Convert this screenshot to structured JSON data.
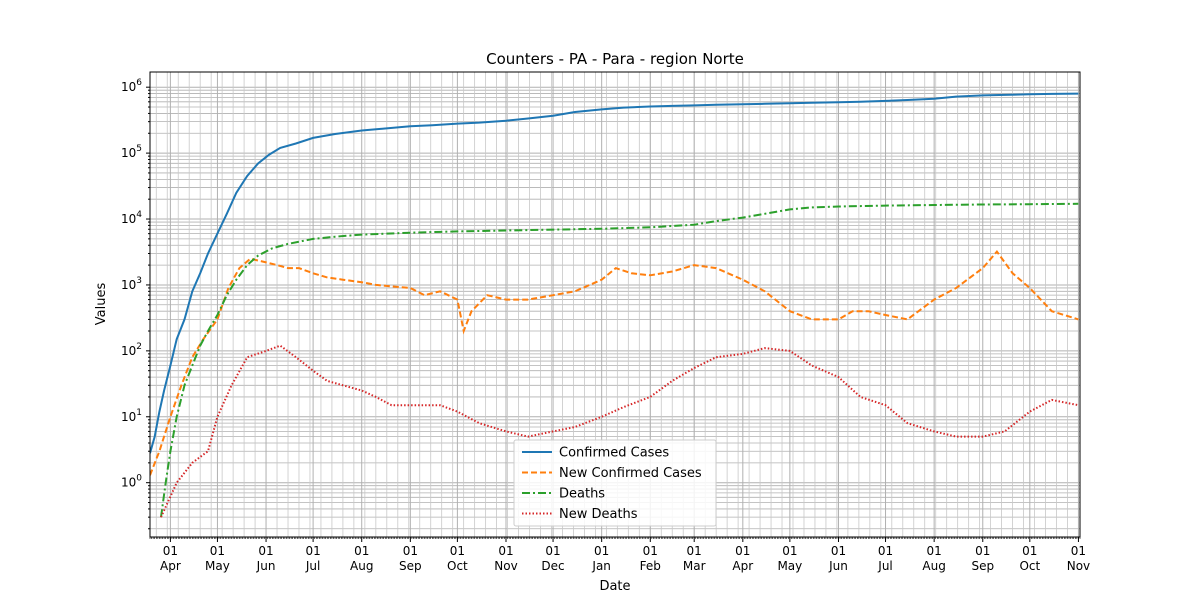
{
  "chart_data": {
    "type": "line",
    "title": "Counters - PA - Para - region Norte",
    "xlabel": "Date",
    "ylabel": "Values",
    "yscale": "log",
    "ylim": [
      0.15,
      1700000
    ],
    "xlim": [
      "2020-03-19",
      "2021-11-02"
    ],
    "grid": true,
    "legend_position": "lower-center",
    "x_tick_labels": [
      {
        "date": "2020-04-01",
        "day": "01",
        "month": "Apr"
      },
      {
        "date": "2020-05-01",
        "day": "01",
        "month": "May"
      },
      {
        "date": "2020-06-01",
        "day": "01",
        "month": "Jun"
      },
      {
        "date": "2020-07-01",
        "day": "01",
        "month": "Jul"
      },
      {
        "date": "2020-08-01",
        "day": "01",
        "month": "Aug"
      },
      {
        "date": "2020-09-01",
        "day": "01",
        "month": "Sep"
      },
      {
        "date": "2020-10-01",
        "day": "01",
        "month": "Oct"
      },
      {
        "date": "2020-11-01",
        "day": "01",
        "month": "Nov"
      },
      {
        "date": "2020-12-01",
        "day": "01",
        "month": "Dec"
      },
      {
        "date": "2021-01-01",
        "day": "01",
        "month": "Jan"
      },
      {
        "date": "2021-02-01",
        "day": "01",
        "month": "Feb"
      },
      {
        "date": "2021-03-01",
        "day": "01",
        "month": "Mar"
      },
      {
        "date": "2021-04-01",
        "day": "01",
        "month": "Apr"
      },
      {
        "date": "2021-05-01",
        "day": "01",
        "month": "May"
      },
      {
        "date": "2021-06-01",
        "day": "01",
        "month": "Jun"
      },
      {
        "date": "2021-07-01",
        "day": "01",
        "month": "Jul"
      },
      {
        "date": "2021-08-01",
        "day": "01",
        "month": "Aug"
      },
      {
        "date": "2021-09-01",
        "day": "01",
        "month": "Sep"
      },
      {
        "date": "2021-10-01",
        "day": "01",
        "month": "Oct"
      },
      {
        "date": "2021-11-01",
        "day": "01",
        "month": "Nov"
      }
    ],
    "y_tick_labels": [
      {
        "value": 1,
        "base": "10",
        "exp": "0"
      },
      {
        "value": 10,
        "base": "10",
        "exp": "1"
      },
      {
        "value": 100,
        "base": "10",
        "exp": "2"
      },
      {
        "value": 1000,
        "base": "10",
        "exp": "3"
      },
      {
        "value": 10000,
        "base": "10",
        "exp": "4"
      },
      {
        "value": 100000,
        "base": "10",
        "exp": "5"
      },
      {
        "value": 1000000,
        "base": "10",
        "exp": "6"
      }
    ],
    "series": [
      {
        "name": "Confirmed Cases",
        "color": "#1f77b4",
        "dash": "solid",
        "x": [
          "2020-03-19",
          "2020-03-22",
          "2020-03-25",
          "2020-03-28",
          "2020-04-01",
          "2020-04-05",
          "2020-04-10",
          "2020-04-15",
          "2020-04-20",
          "2020-04-25",
          "2020-05-01",
          "2020-05-07",
          "2020-05-13",
          "2020-05-20",
          "2020-05-27",
          "2020-06-03",
          "2020-06-10",
          "2020-06-20",
          "2020-07-01",
          "2020-07-15",
          "2020-08-01",
          "2020-08-15",
          "2020-09-01",
          "2020-09-15",
          "2020-10-01",
          "2020-10-15",
          "2020-11-01",
          "2020-11-15",
          "2020-12-01",
          "2020-12-15",
          "2021-01-01",
          "2021-01-15",
          "2021-02-01",
          "2021-02-15",
          "2021-03-01",
          "2021-03-15",
          "2021-04-01",
          "2021-04-15",
          "2021-05-01",
          "2021-05-15",
          "2021-06-01",
          "2021-06-15",
          "2021-07-01",
          "2021-07-15",
          "2021-08-01",
          "2021-08-15",
          "2021-09-01",
          "2021-09-15",
          "2021-10-01",
          "2021-10-15",
          "2021-11-01"
        ],
        "y": [
          2.8,
          5,
          12,
          25,
          60,
          150,
          300,
          800,
          1500,
          3000,
          6000,
          12000,
          25000,
          45000,
          70000,
          95000,
          120000,
          140000,
          170000,
          195000,
          220000,
          235000,
          255000,
          265000,
          280000,
          290000,
          310000,
          335000,
          370000,
          420000,
          460000,
          490000,
          510000,
          520000,
          530000,
          540000,
          550000,
          560000,
          570000,
          580000,
          590000,
          600000,
          620000,
          640000,
          670000,
          720000,
          750000,
          765000,
          780000,
          790000,
          800000
        ]
      },
      {
        "name": "New Confirmed Cases",
        "color": "#ff7f0e",
        "dash": "dashed",
        "x": [
          "2020-03-19",
          "2020-03-25",
          "2020-04-01",
          "2020-04-08",
          "2020-04-15",
          "2020-04-22",
          "2020-05-01",
          "2020-05-08",
          "2020-05-15",
          "2020-05-22",
          "2020-06-01",
          "2020-06-08",
          "2020-06-15",
          "2020-06-22",
          "2020-07-01",
          "2020-07-10",
          "2020-07-20",
          "2020-08-01",
          "2020-08-10",
          "2020-08-20",
          "2020-09-01",
          "2020-09-10",
          "2020-09-20",
          "2020-10-01",
          "2020-10-05",
          "2020-10-10",
          "2020-10-20",
          "2020-11-01",
          "2020-11-15",
          "2020-12-01",
          "2020-12-15",
          "2021-01-01",
          "2021-01-10",
          "2021-01-20",
          "2021-02-01",
          "2021-02-15",
          "2021-03-01",
          "2021-03-15",
          "2021-04-01",
          "2021-04-15",
          "2021-05-01",
          "2021-05-15",
          "2021-06-01",
          "2021-06-10",
          "2021-06-20",
          "2021-07-01",
          "2021-07-15",
          "2021-08-01",
          "2021-08-15",
          "2021-09-01",
          "2021-09-10",
          "2021-09-20",
          "2021-10-01",
          "2021-10-15",
          "2021-11-01"
        ],
        "y": [
          1.3,
          3,
          10,
          30,
          80,
          150,
          300,
          900,
          1800,
          2500,
          2200,
          2000,
          1800,
          1800,
          1500,
          1300,
          1200,
          1100,
          1000,
          950,
          900,
          700,
          800,
          600,
          200,
          400,
          700,
          600,
          600,
          700,
          800,
          1200,
          1800,
          1500,
          1400,
          1600,
          2000,
          1800,
          1200,
          800,
          400,
          300,
          300,
          400,
          400,
          350,
          300,
          600,
          900,
          1800,
          3200,
          1500,
          900,
          400,
          300
        ]
      },
      {
        "name": "Deaths",
        "color": "#2ca02c",
        "dash": "dashdot",
        "x": [
          "2020-03-26",
          "2020-03-29",
          "2020-04-01",
          "2020-04-05",
          "2020-04-10",
          "2020-04-15",
          "2020-04-20",
          "2020-04-25",
          "2020-05-01",
          "2020-05-07",
          "2020-05-13",
          "2020-05-20",
          "2020-05-27",
          "2020-06-05",
          "2020-06-15",
          "2020-07-01",
          "2020-07-15",
          "2020-08-01",
          "2020-09-01",
          "2020-10-01",
          "2020-11-01",
          "2020-12-01",
          "2021-01-01",
          "2021-02-01",
          "2021-03-01",
          "2021-03-15",
          "2021-04-01",
          "2021-04-15",
          "2021-05-01",
          "2021-05-15",
          "2021-06-01",
          "2021-07-01",
          "2021-08-01",
          "2021-09-01",
          "2021-10-01",
          "2021-11-01"
        ],
        "y": [
          0.3,
          1,
          3,
          10,
          30,
          60,
          120,
          200,
          350,
          700,
          1200,
          2000,
          2800,
          3600,
          4200,
          5000,
          5400,
          5800,
          6200,
          6500,
          6700,
          6900,
          7100,
          7500,
          8200,
          9300,
          10500,
          12000,
          14000,
          15000,
          15500,
          16000,
          16300,
          16600,
          16800,
          17000
        ]
      },
      {
        "name": "New Deaths",
        "color": "#d62728",
        "dash": "dotted",
        "x": [
          "2020-03-26",
          "2020-04-05",
          "2020-04-15",
          "2020-04-25",
          "2020-05-01",
          "2020-05-10",
          "2020-05-20",
          "2020-06-01",
          "2020-06-10",
          "2020-06-20",
          "2020-07-01",
          "2020-07-10",
          "2020-07-20",
          "2020-08-01",
          "2020-08-10",
          "2020-08-20",
          "2020-09-01",
          "2020-09-10",
          "2020-09-20",
          "2020-10-01",
          "2020-10-15",
          "2020-11-01",
          "2020-11-15",
          "2020-12-01",
          "2020-12-15",
          "2021-01-01",
          "2021-01-15",
          "2021-02-01",
          "2021-02-15",
          "2021-03-01",
          "2021-03-15",
          "2021-04-01",
          "2021-04-15",
          "2021-05-01",
          "2021-05-15",
          "2021-06-01",
          "2021-06-15",
          "2021-07-01",
          "2021-07-15",
          "2021-08-01",
          "2021-08-15",
          "2021-09-01",
          "2021-09-15",
          "2021-10-01",
          "2021-10-15",
          "2021-11-01"
        ],
        "y": [
          0.3,
          1,
          2,
          3,
          10,
          30,
          80,
          100,
          120,
          80,
          50,
          35,
          30,
          25,
          20,
          15,
          15,
          15,
          15,
          12,
          8,
          6,
          5,
          6,
          7,
          10,
          14,
          20,
          35,
          55,
          80,
          90,
          110,
          100,
          60,
          40,
          20,
          15,
          8,
          6,
          5,
          5,
          6,
          12,
          18,
          15
        ]
      }
    ]
  }
}
